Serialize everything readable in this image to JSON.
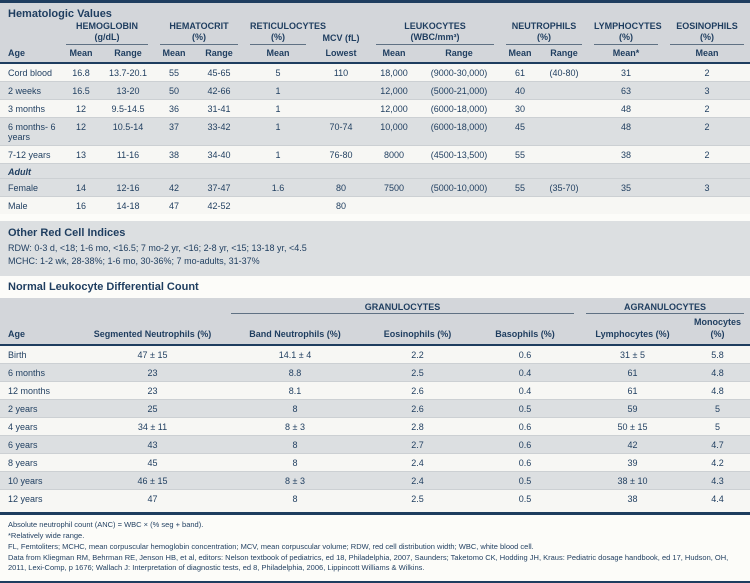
{
  "colors": {
    "navy_text": "#1e3d5f",
    "header_background": "#d3d6da",
    "row_gray": "#dcdfe1",
    "row_light": "#f7f7f4",
    "rule": "#1e3d5f"
  },
  "hematologic": {
    "title": "Hematologic Values",
    "column_groups": [
      {
        "id": "hemoglobin",
        "line1": "HEMOGLOBIN",
        "line2": "(g/dL)",
        "span": 2,
        "underline": true
      },
      {
        "id": "hematocrit",
        "line1": "HEMATOCRIT",
        "line2": "(%)",
        "span": 2,
        "underline": true
      },
      {
        "id": "reticulocytes",
        "line1": "RETICULOCYTES",
        "line2": "(%)",
        "span": 1,
        "underline": true
      },
      {
        "id": "mcv",
        "line1": "MCV (fL)",
        "line2": "",
        "span": 1,
        "underline": false
      },
      {
        "id": "leukocytes",
        "line1": "LEUKOCYTES",
        "line2": "(WBC/mm³)",
        "span": 2,
        "underline": true
      },
      {
        "id": "neutrophils",
        "line1": "NEUTROPHILS",
        "line2": "(%)",
        "span": 2,
        "underline": true
      },
      {
        "id": "lymphocytes",
        "line1": "LYMPHOCYTES",
        "line2": "(%)",
        "span": 1,
        "underline": true
      },
      {
        "id": "eosinophils",
        "line1": "EOSINOPHILS",
        "line2": "(%)",
        "span": 1,
        "underline": true
      }
    ],
    "sub_headers": [
      "Age",
      "Mean",
      "Range",
      "Mean",
      "Range",
      "Mean",
      "Lowest",
      "Mean",
      "Range",
      "Mean",
      "Range",
      "Mean*",
      "Mean"
    ],
    "rows": [
      {
        "label": "Cord blood",
        "shade": "light",
        "values": [
          "16.8",
          "13.7-20.1",
          "55",
          "45-65",
          "5",
          "110",
          "18,000",
          "(9000-30,000)",
          "61",
          "(40-80)",
          "31",
          "2"
        ]
      },
      {
        "label": "2 weeks",
        "shade": "gray",
        "values": [
          "16.5",
          "13-20",
          "50",
          "42-66",
          "1",
          "",
          "12,000",
          "(5000-21,000)",
          "40",
          "",
          "63",
          "3"
        ]
      },
      {
        "label": "3 months",
        "shade": "light",
        "values": [
          "12",
          "9.5-14.5",
          "36",
          "31-41",
          "1",
          "",
          "12,000",
          "(6000-18,000)",
          "30",
          "",
          "48",
          "2"
        ]
      },
      {
        "label": "6 months- 6 years",
        "shade": "gray",
        "values": [
          "12",
          "10.5-14",
          "37",
          "33-42",
          "1",
          "70-74",
          "10,000",
          "(6000-18,000)",
          "45",
          "",
          "48",
          "2"
        ]
      },
      {
        "label": "7-12 years",
        "shade": "light",
        "values": [
          "13",
          "11-16",
          "38",
          "34-40",
          "1",
          "76-80",
          "8000",
          "(4500-13,500)",
          "55",
          "",
          "38",
          "2"
        ]
      },
      {
        "label": "Adult",
        "shade": "gray",
        "subheader": true,
        "values": []
      },
      {
        "label": "Female",
        "shade": "gray",
        "values": [
          "14",
          "12-16",
          "42",
          "37-47",
          "1.6",
          "80",
          "7500",
          "(5000-10,000)",
          "55",
          "(35-70)",
          "35",
          "3"
        ]
      },
      {
        "label": "Male",
        "shade": "light",
        "values": [
          "16",
          "14-18",
          "47",
          "42-52",
          "",
          "80",
          "",
          "",
          "",
          "",
          "",
          ""
        ]
      }
    ]
  },
  "red_cell_indices": {
    "title": "Other Red Cell Indices",
    "lines": [
      "RDW: 0-3 d, <18; 1-6 mo, <16.5; 7 mo-2 yr, <16; 2-8 yr, <15; 13-18 yr, <4.5",
      "MCHC: 1-2 wk, 28-38%; 1-6 mo, 30-36%; 7 mo-adults, 31-37%"
    ]
  },
  "leukocyte_differential": {
    "title": "Normal Leukocyte Differential Count",
    "column_groups": [
      {
        "id": "spacer",
        "label": "",
        "span": 2,
        "underline": false
      },
      {
        "id": "granulocytes",
        "label": "GRANULOCYTES",
        "span": 3,
        "underline": true
      },
      {
        "id": "agranulocytes",
        "label": "AGRANULOCYTES",
        "span": 2,
        "underline": true
      }
    ],
    "columns": [
      "Age",
      "Segmented Neutrophils (%)",
      "Band Neutrophils (%)",
      "Eosinophils (%)",
      "Basophils (%)",
      "Lymphocytes (%)",
      "Monocytes (%)"
    ],
    "rows": [
      {
        "label": "Birth",
        "shade": "light",
        "values": [
          "47 ± 15",
          "14.1 ± 4",
          "2.2",
          "0.6",
          "31 ± 5",
          "5.8"
        ]
      },
      {
        "label": "6 months",
        "shade": "gray",
        "values": [
          "23",
          "8.8",
          "2.5",
          "0.4",
          "61",
          "4.8"
        ]
      },
      {
        "label": "12 months",
        "shade": "light",
        "values": [
          "23",
          "8.1",
          "2.6",
          "0.4",
          "61",
          "4.8"
        ]
      },
      {
        "label": "2 years",
        "shade": "gray",
        "values": [
          "25",
          "8",
          "2.6",
          "0.5",
          "59",
          "5"
        ]
      },
      {
        "label": "4 years",
        "shade": "light",
        "values": [
          "34 ± 11",
          "8 ± 3",
          "2.8",
          "0.6",
          "50 ± 15",
          "5"
        ]
      },
      {
        "label": "6 years",
        "shade": "gray",
        "values": [
          "43",
          "8",
          "2.7",
          "0.6",
          "42",
          "4.7"
        ]
      },
      {
        "label": "8 years",
        "shade": "light",
        "values": [
          "45",
          "8",
          "2.4",
          "0.6",
          "39",
          "4.2"
        ]
      },
      {
        "label": "10 years",
        "shade": "gray",
        "values": [
          "46 ± 15",
          "8 ± 3",
          "2.4",
          "0.5",
          "38 ± 10",
          "4.3"
        ]
      },
      {
        "label": "12 years",
        "shade": "light",
        "values": [
          "47",
          "8",
          "2.5",
          "0.5",
          "38",
          "4.4"
        ]
      }
    ]
  },
  "footnotes": [
    "Absolute neutrophil count (ANC) = WBC × (% seg + band).",
    "*Relatively wide range.",
    "FL, Femtoliters; MCHC, mean corpuscular hemoglobin concentration; MCV, mean corpuscular volume; RDW, red cell distribution width; WBC, white blood cell.",
    "Data from Kliegman RM, Behrman RE, Jenson HB, et al, editors: Nelson textbook of pediatrics, ed 18, Philadelphia, 2007, Saunders; Taketomo CK, Hodding JH, Kraus: Pediatric dosage handbook, ed 17, Hudson, OH, 2011, Lexi-Comp, p 1676; Wallach J: Interpretation of diagnostic tests, ed 8, Philadelphia, 2006, Lippincott Williams & Wilkins."
  ]
}
